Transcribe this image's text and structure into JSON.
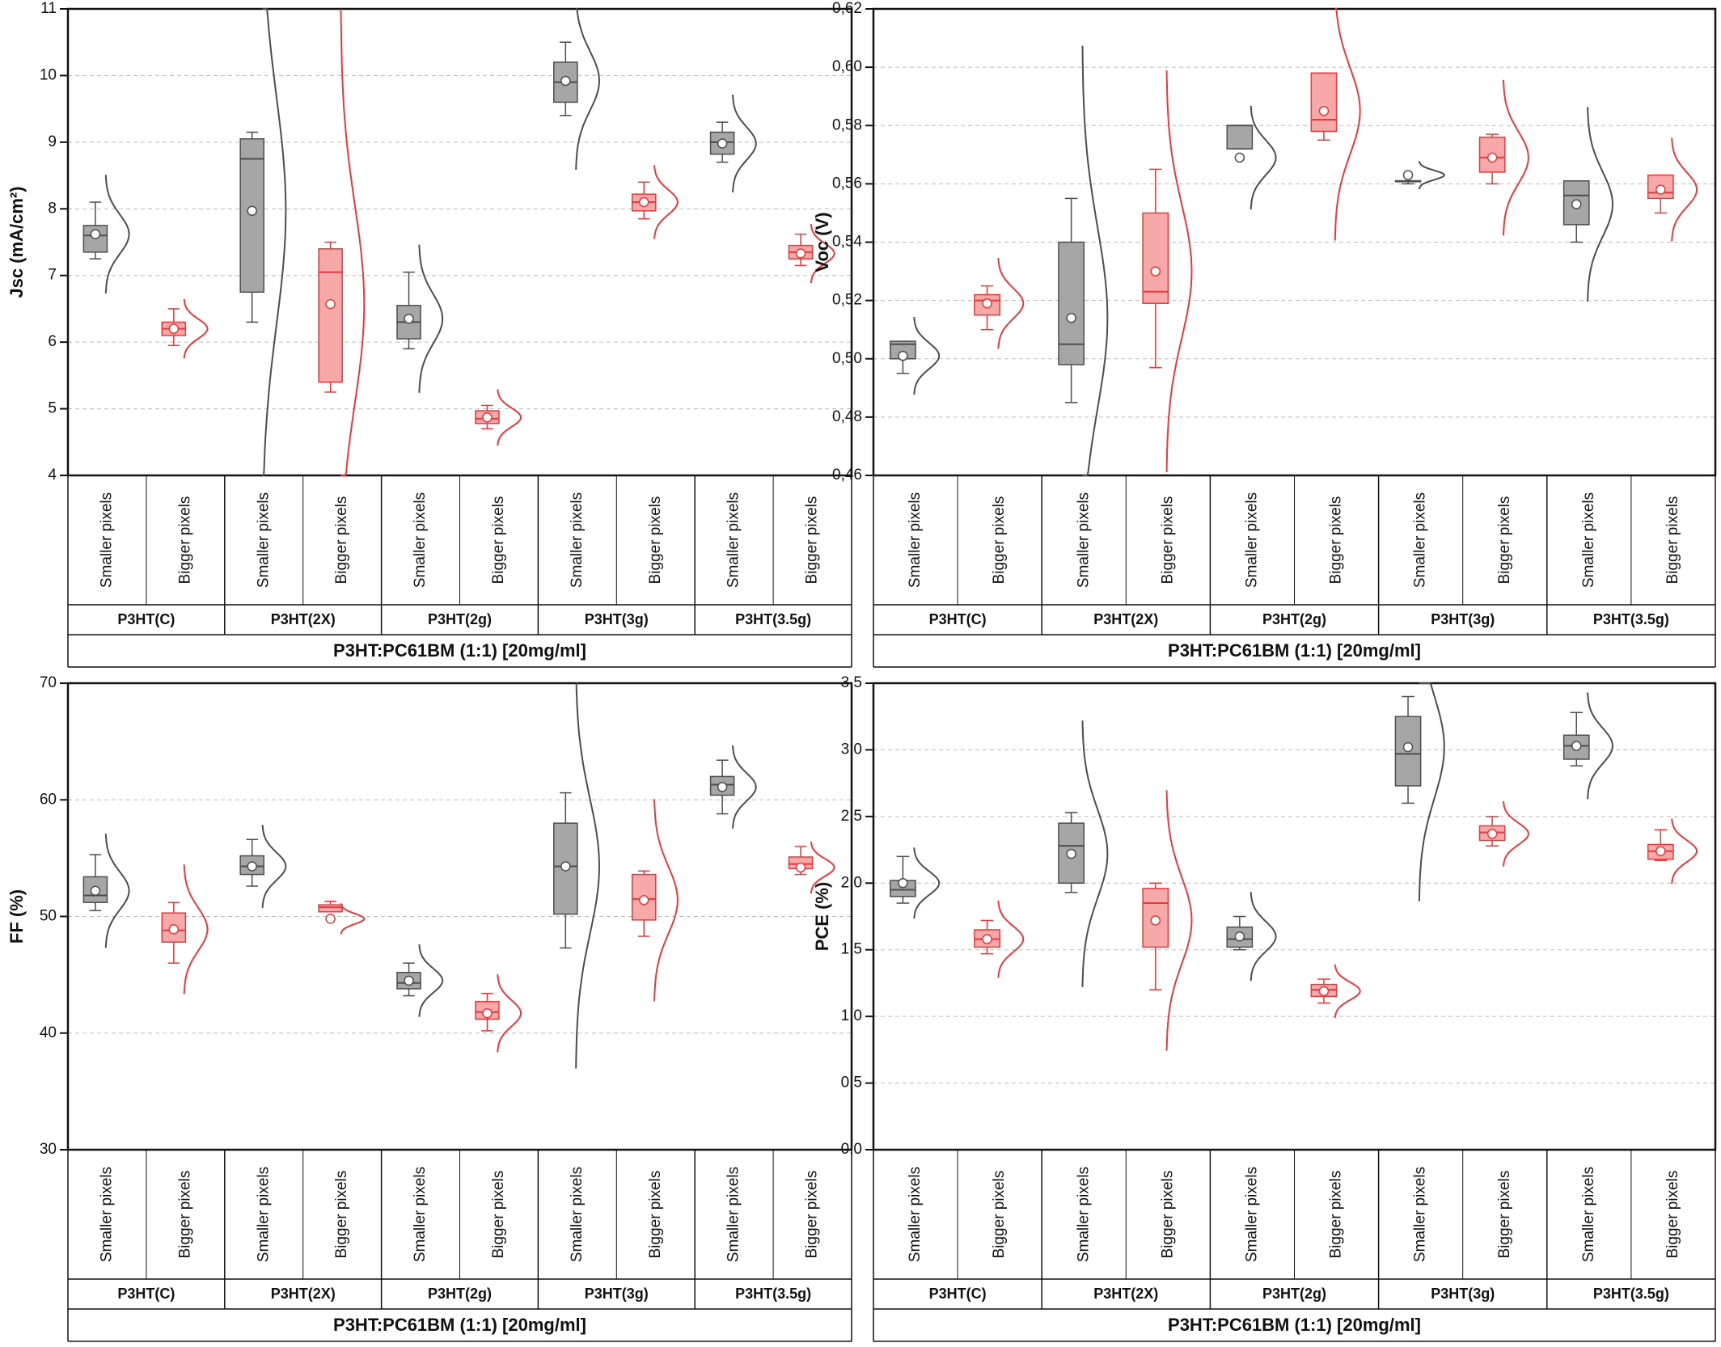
{
  "chart_data": [
    {
      "type": "box",
      "ylabel": "Jsc (mA/cm²)",
      "ylim": [
        4,
        11
      ],
      "yticks": [
        4,
        5,
        6,
        7,
        8,
        9,
        10,
        11
      ],
      "grid": true,
      "colors": [
        "#a6a6a6",
        "#f7a8a8"
      ],
      "edge_colors": [
        "#4d4d4d",
        "#e8393c"
      ],
      "categories": [
        "Smaller pixels",
        "Bigger pixels",
        "Smaller pixels",
        "Bigger pixels",
        "Smaller pixels",
        "Bigger pixels",
        "Smaller pixels",
        "Bigger pixels",
        "Smaller pixels",
        "Bigger pixels"
      ],
      "groups": [
        "P3HT(C)",
        "P3HT(2X)",
        "P3HT(2g)",
        "P3HT(3g)",
        "P3HT(3.5g)"
      ],
      "group_title": "P3HT:PC61BM (1:1) [20mg/ml]",
      "boxes": [
        {
          "min": 7.25,
          "q1": 7.35,
          "median": 7.6,
          "q3": 7.75,
          "max": 8.1,
          "mean": 7.62
        },
        {
          "min": 5.95,
          "q1": 6.1,
          "median": 6.2,
          "q3": 6.3,
          "max": 6.5,
          "mean": 6.2
        },
        {
          "min": 6.3,
          "q1": 6.75,
          "median": 8.75,
          "q3": 9.05,
          "max": 9.15,
          "mean": 7.97
        },
        {
          "min": 5.25,
          "q1": 5.4,
          "median": 7.05,
          "q3": 7.4,
          "max": 7.5,
          "mean": 6.57
        },
        {
          "min": 5.9,
          "q1": 6.05,
          "median": 6.3,
          "q3": 6.55,
          "max": 7.05,
          "mean": 6.35
        },
        {
          "min": 4.7,
          "q1": 4.78,
          "median": 4.85,
          "q3": 4.97,
          "max": 5.05,
          "mean": 4.87
        },
        {
          "min": 9.4,
          "q1": 9.6,
          "median": 9.9,
          "q3": 10.2,
          "max": 10.5,
          "mean": 9.92
        },
        {
          "min": 7.85,
          "q1": 7.97,
          "median": 8.1,
          "q3": 8.22,
          "max": 8.4,
          "mean": 8.1
        },
        {
          "min": 8.7,
          "q1": 8.82,
          "median": 9.0,
          "q3": 9.15,
          "max": 9.3,
          "mean": 8.98
        },
        {
          "min": 7.15,
          "q1": 7.25,
          "median": 7.35,
          "q3": 7.45,
          "max": 7.62,
          "mean": 7.33
        }
      ]
    },
    {
      "type": "box",
      "ylabel": "Voc (V)",
      "ylim": [
        0.46,
        0.62
      ],
      "yticks": [
        {
          "value": 0.46,
          "label": "0,46"
        },
        {
          "value": 0.48,
          "label": "0,48"
        },
        {
          "value": 0.5,
          "label": "0,50"
        },
        {
          "value": 0.52,
          "label": "0,52"
        },
        {
          "value": 0.54,
          "label": "0,54"
        },
        {
          "value": 0.56,
          "label": "0,56"
        },
        {
          "value": 0.58,
          "label": "0,58"
        },
        {
          "value": 0.6,
          "label": "0,60"
        },
        {
          "value": 0.62,
          "label": "0,62"
        }
      ],
      "grid": true,
      "colors": [
        "#a6a6a6",
        "#f7a8a8"
      ],
      "edge_colors": [
        "#4d4d4d",
        "#e8393c"
      ],
      "categories": [
        "Smaller pixels",
        "Bigger pixels",
        "Smaller pixels",
        "Bigger pixels",
        "Smaller pixels",
        "Bigger pixels",
        "Smaller pixels",
        "Bigger pixels",
        "Smaller pixels",
        "Bigger pixels"
      ],
      "groups": [
        "P3HT(C)",
        "P3HT(2X)",
        "P3HT(2g)",
        "P3HT(3g)",
        "P3HT(3.5g)"
      ],
      "group_title": "P3HT:PC61BM (1:1) [20mg/ml]",
      "boxes": [
        {
          "min": 0.495,
          "q1": 0.5,
          "median": 0.505,
          "q3": 0.506,
          "max": 0.506,
          "mean": 0.501
        },
        {
          "min": 0.51,
          "q1": 0.515,
          "median": 0.52,
          "q3": 0.522,
          "max": 0.525,
          "mean": 0.519
        },
        {
          "min": 0.485,
          "q1": 0.498,
          "median": 0.505,
          "q3": 0.54,
          "max": 0.555,
          "mean": 0.514
        },
        {
          "min": 0.497,
          "q1": 0.519,
          "median": 0.523,
          "q3": 0.55,
          "max": 0.565,
          "mean": 0.53
        },
        {
          "min": 0.572,
          "q1": 0.572,
          "median": 0.58,
          "q3": 0.58,
          "max": 0.58,
          "mean": 0.569
        },
        {
          "min": 0.575,
          "q1": 0.578,
          "median": 0.582,
          "q3": 0.598,
          "max": 0.598,
          "mean": 0.585
        },
        {
          "min": 0.56,
          "q1": 0.561,
          "median": 0.561,
          "q3": 0.561,
          "max": 0.561,
          "mean": 0.563
        },
        {
          "min": 0.56,
          "q1": 0.564,
          "median": 0.569,
          "q3": 0.576,
          "max": 0.577,
          "mean": 0.569
        },
        {
          "min": 0.54,
          "q1": 0.546,
          "median": 0.556,
          "q3": 0.561,
          "max": 0.561,
          "mean": 0.553
        },
        {
          "min": 0.55,
          "q1": 0.555,
          "median": 0.557,
          "q3": 0.563,
          "max": 0.563,
          "mean": 0.558
        }
      ]
    },
    {
      "type": "box",
      "ylabel": "FF (%)",
      "ylim": [
        30,
        70
      ],
      "yticks": [
        30,
        40,
        50,
        60,
        70
      ],
      "grid": true,
      "colors": [
        "#a6a6a6",
        "#f7a8a8"
      ],
      "edge_colors": [
        "#4d4d4d",
        "#e8393c"
      ],
      "categories": [
        "Smaller pixels",
        "Bigger pixels",
        "Smaller pixels",
        "Bigger pixels",
        "Smaller pixels",
        "Bigger pixels",
        "Smaller pixels",
        "Bigger pixels",
        "Smaller pixels",
        "Bigger pixels"
      ],
      "groups": [
        "P3HT(C)",
        "P3HT(2X)",
        "P3HT(2g)",
        "P3HT(3g)",
        "P3HT(3.5g)"
      ],
      "group_title": "P3HT:PC61BM (1:1) [20mg/ml]",
      "boxes": [
        {
          "min": 50.5,
          "q1": 51.2,
          "median": 51.8,
          "q3": 53.4,
          "max": 55.3,
          "mean": 52.2
        },
        {
          "min": 46,
          "q1": 47.8,
          "median": 48.8,
          "q3": 50.3,
          "max": 51.2,
          "mean": 48.9
        },
        {
          "min": 52.6,
          "q1": 53.6,
          "median": 54.3,
          "q3": 55.2,
          "max": 56.6,
          "mean": 54.3
        },
        {
          "min": 50.4,
          "q1": 50.4,
          "median": 50.8,
          "q3": 51.0,
          "max": 51.3,
          "mean": 49.8
        },
        {
          "min": 43.2,
          "q1": 43.8,
          "median": 44.3,
          "q3": 45.2,
          "max": 46,
          "mean": 44.5
        },
        {
          "min": 40.2,
          "q1": 41.2,
          "median": 41.8,
          "q3": 42.7,
          "max": 43.4,
          "mean": 41.7
        },
        {
          "min": 47.3,
          "q1": 50.2,
          "median": 54.3,
          "q3": 58,
          "max": 60.6,
          "mean": 54.3
        },
        {
          "min": 48.3,
          "q1": 49.7,
          "median": 51.5,
          "q3": 53.6,
          "max": 53.9,
          "mean": 51.4
        },
        {
          "min": 58.8,
          "q1": 60.4,
          "median": 61.3,
          "q3": 62,
          "max": 63.4,
          "mean": 61.1
        },
        {
          "min": 53.6,
          "q1": 54.1,
          "median": 54.5,
          "q3": 55.1,
          "max": 56,
          "mean": 54.2
        }
      ]
    },
    {
      "type": "box",
      "ylabel": "PCE (%)",
      "ylim": [
        0,
        3.5
      ],
      "yticks": [
        {
          "value": 0,
          "label": "0,0"
        },
        {
          "value": 0.5,
          "label": "0,5"
        },
        {
          "value": 1,
          "label": "1,0"
        },
        {
          "value": 1.5,
          "label": "1,5"
        },
        {
          "value": 2,
          "label": "2,0"
        },
        {
          "value": 2.5,
          "label": "2,5"
        },
        {
          "value": 3,
          "label": "3,0"
        },
        {
          "value": 3.5,
          "label": "3,5"
        }
      ],
      "grid": true,
      "colors": [
        "#a6a6a6",
        "#f7a8a8"
      ],
      "edge_colors": [
        "#4d4d4d",
        "#e8393c"
      ],
      "categories": [
        "Smaller pixels",
        "Bigger pixels",
        "Smaller pixels",
        "Bigger pixels",
        "Smaller pixels",
        "Bigger pixels",
        "Smaller pixels",
        "Bigger pixels",
        "Smaller pixels",
        "Bigger pixels"
      ],
      "groups": [
        "P3HT(C)",
        "P3HT(2X)",
        "P3HT(2g)",
        "P3HT(3g)",
        "P3HT(3.5g)"
      ],
      "group_title": "P3HT:PC61BM (1:1) [20mg/ml]",
      "boxes": [
        {
          "min": 1.85,
          "q1": 1.9,
          "median": 1.95,
          "q3": 2.02,
          "max": 2.2,
          "mean": 2.0
        },
        {
          "min": 1.47,
          "q1": 1.52,
          "median": 1.58,
          "q3": 1.65,
          "max": 1.72,
          "mean": 1.58
        },
        {
          "min": 1.93,
          "q1": 2.0,
          "median": 2.28,
          "q3": 2.45,
          "max": 2.53,
          "mean": 2.22
        },
        {
          "min": 1.2,
          "q1": 1.52,
          "median": 1.85,
          "q3": 1.96,
          "max": 2.0,
          "mean": 1.72
        },
        {
          "min": 1.5,
          "q1": 1.52,
          "median": 1.58,
          "q3": 1.67,
          "max": 1.75,
          "mean": 1.6
        },
        {
          "min": 1.1,
          "q1": 1.15,
          "median": 1.2,
          "q3": 1.24,
          "max": 1.28,
          "mean": 1.19
        },
        {
          "min": 2.6,
          "q1": 2.73,
          "median": 2.97,
          "q3": 3.25,
          "max": 3.4,
          "mean": 3.02
        },
        {
          "min": 2.28,
          "q1": 2.32,
          "median": 2.38,
          "q3": 2.43,
          "max": 2.5,
          "mean": 2.37
        },
        {
          "min": 2.88,
          "q1": 2.93,
          "median": 3.03,
          "q3": 3.11,
          "max": 3.28,
          "mean": 3.03
        },
        {
          "min": 2.17,
          "q1": 2.18,
          "median": 2.24,
          "q3": 2.29,
          "max": 2.4,
          "mean": 2.24
        }
      ]
    }
  ]
}
